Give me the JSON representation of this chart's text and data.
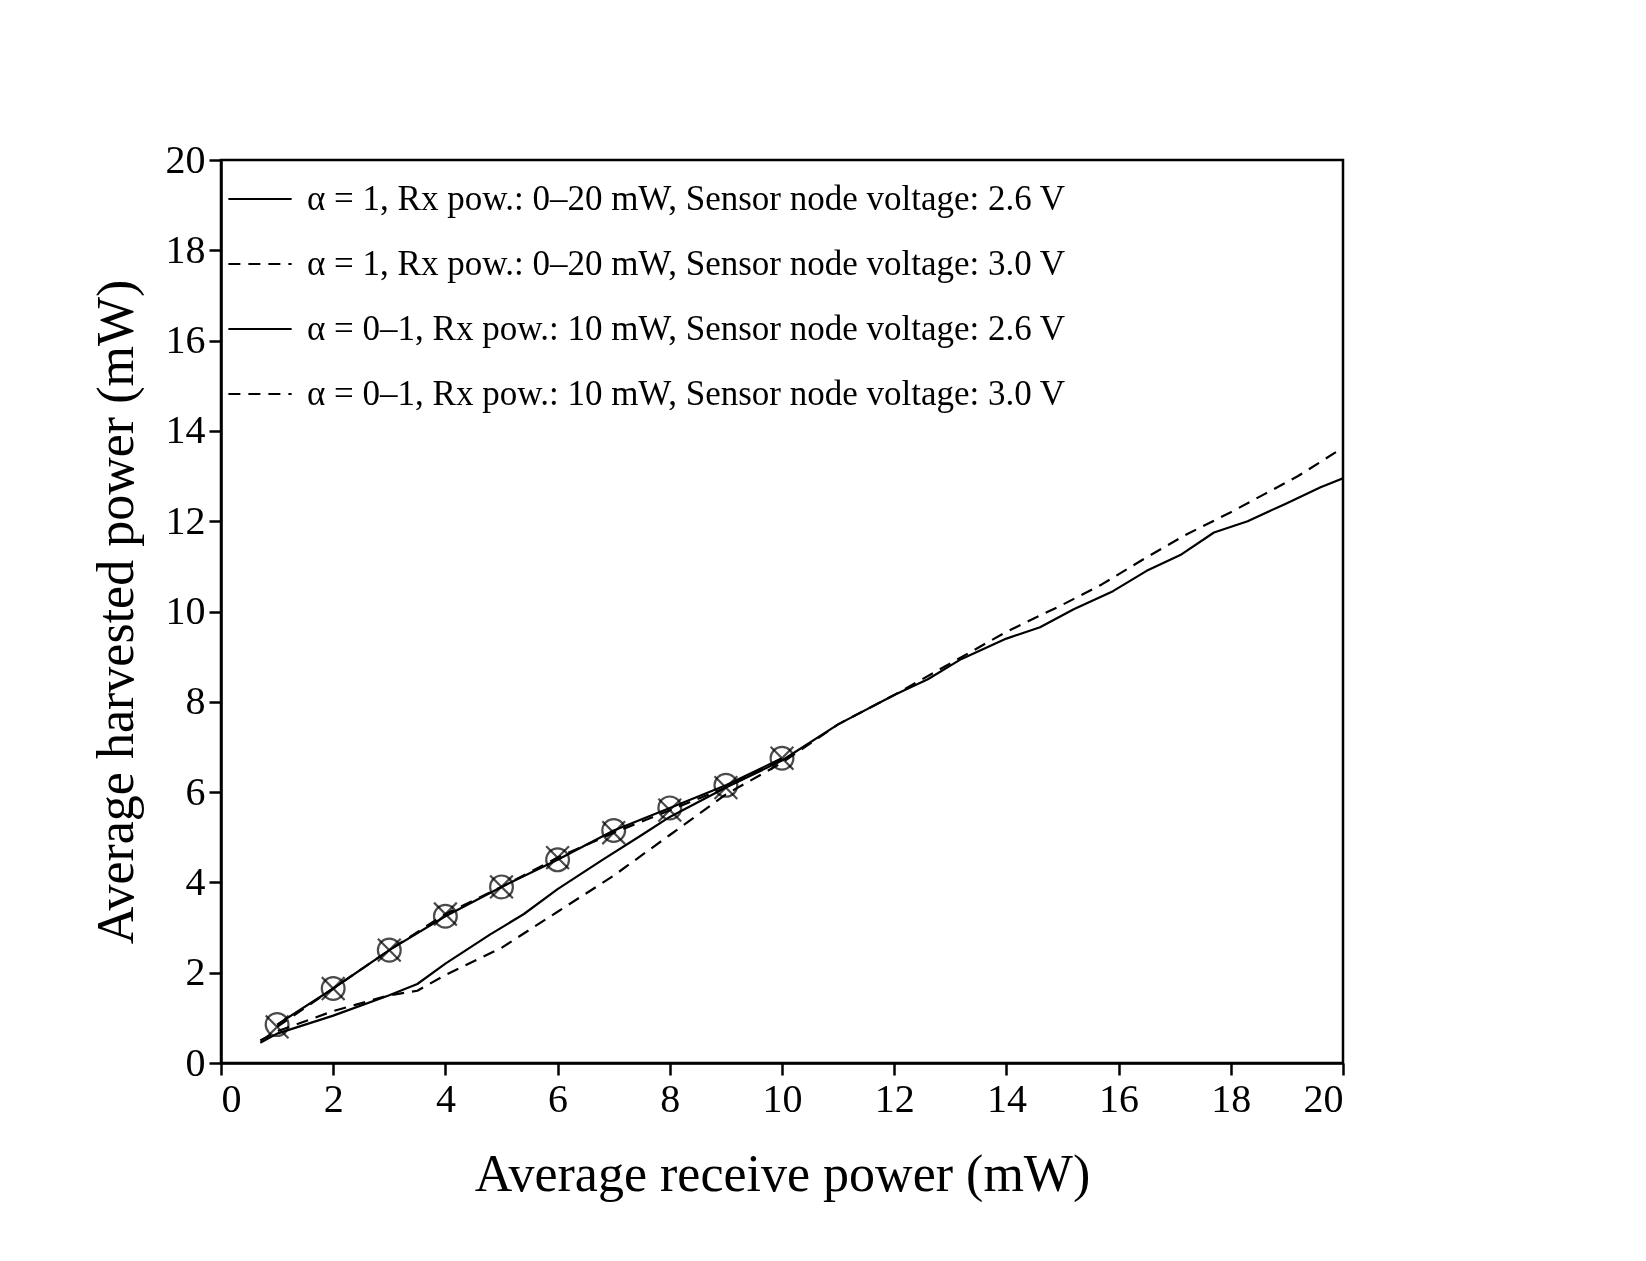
{
  "chart_data": {
    "type": "line",
    "xlabel": "Average receive power (mW)",
    "ylabel": "Average harvested power (mW)",
    "xlim": [
      0,
      20
    ],
    "ylim": [
      0,
      20
    ],
    "xticks": [
      0,
      2,
      4,
      6,
      8,
      10,
      12,
      14,
      16,
      18,
      20
    ],
    "yticks": [
      0,
      2,
      4,
      6,
      8,
      10,
      12,
      14,
      16,
      18,
      20
    ],
    "grid": false,
    "legend": "top left",
    "series": [
      {
        "name": "α = 1, Rx pow.: 0–20 mW, Sensor node voltage: 2.6 V",
        "color": "#000000",
        "line_style": "solid",
        "marker": "none",
        "x": [
          0.7,
          1,
          2,
          3,
          3.5,
          4,
          4.8,
          5.4,
          6,
          6.8,
          7.5,
          8,
          9,
          10,
          11,
          12,
          12.6,
          13.2,
          14,
          14.6,
          15.2,
          15.9,
          16.5,
          17.1,
          17.7,
          18.3,
          19,
          19.6,
          20
        ],
        "values": [
          0.45,
          0.65,
          1.05,
          1.5,
          1.75,
          2.2,
          2.85,
          3.3,
          3.85,
          4.5,
          5.05,
          5.45,
          6.1,
          6.7,
          7.5,
          8.15,
          8.5,
          8.95,
          9.4,
          9.65,
          10.05,
          10.45,
          10.9,
          11.25,
          11.75,
          12,
          12.4,
          12.75,
          12.95
        ]
      },
      {
        "name": "α = 1, Rx pow.: 0–20 mW, Sensor node voltage: 3.0 V",
        "color": "#000000",
        "line_style": "dashed",
        "marker": "none",
        "x": [
          0.7,
          1,
          2,
          3,
          3.5,
          4,
          5,
          5.5,
          6,
          7,
          8,
          9,
          10,
          11,
          12,
          13,
          14,
          15,
          15.7,
          16.5,
          17.2,
          18,
          18.6,
          19.2,
          19.9
        ],
        "values": [
          0.5,
          0.7,
          1.15,
          1.5,
          1.6,
          1.95,
          2.55,
          2.95,
          3.35,
          4.15,
          5.05,
          5.95,
          6.65,
          7.5,
          8.15,
          8.85,
          9.55,
          10.15,
          10.6,
          11.2,
          11.7,
          12.2,
          12.6,
          13,
          13.55
        ]
      },
      {
        "name": "α = 0–1, Rx pow.: 10 mW, Sensor node voltage: 2.6 V",
        "color": "#000000",
        "line_style": "solid",
        "marker": "circle",
        "x": [
          1,
          2,
          3,
          4,
          5,
          6,
          7,
          8,
          9,
          10
        ],
        "values": [
          0.85,
          1.65,
          2.5,
          3.25,
          3.9,
          4.5,
          5.15,
          5.65,
          6.15,
          6.75
        ]
      },
      {
        "name": "α = 0–1, Rx pow.: 10 mW, Sensor node voltage: 3.0 V",
        "color": "#000000",
        "line_style": "dashed",
        "marker": "cross",
        "x": [
          1,
          2,
          3,
          4,
          5,
          6,
          7,
          8,
          9,
          10
        ],
        "values": [
          0.8,
          1.65,
          2.5,
          3.3,
          3.9,
          4.55,
          5.1,
          5.6,
          6.1,
          6.75
        ]
      }
    ]
  }
}
